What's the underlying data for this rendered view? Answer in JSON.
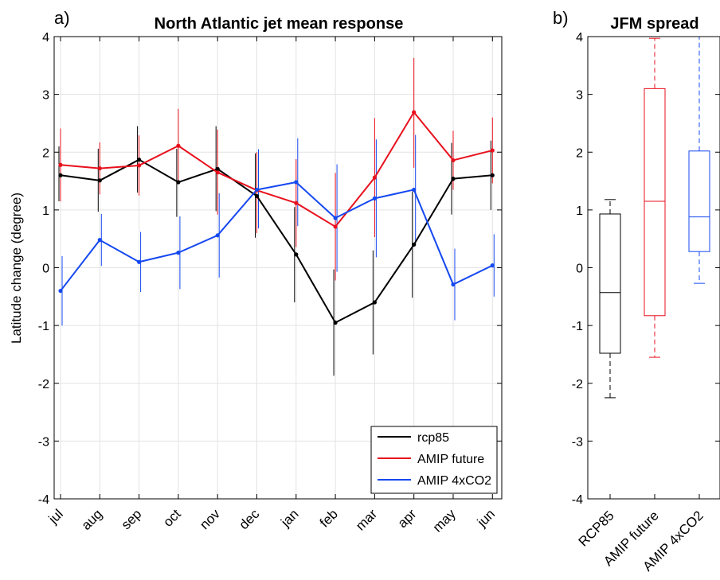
{
  "chart_data": [
    {
      "type": "line",
      "panel_label": "a)",
      "title": "North Atlantic jet mean response",
      "xlabel": "",
      "ylabel": "Latitude change (degree)",
      "ylim": [
        -4,
        4
      ],
      "yticks": [
        -4,
        -3,
        -2,
        -1,
        0,
        1,
        2,
        3,
        4
      ],
      "categories": [
        "jul",
        "aug",
        "sep",
        "oct",
        "nov",
        "dec",
        "jan",
        "feb",
        "mar",
        "apr",
        "may",
        "jun"
      ],
      "grid": true,
      "legend_position": "bottom-right",
      "series": [
        {
          "name": "rcp85",
          "color": "#000000",
          "values": [
            1.6,
            1.51,
            1.87,
            1.48,
            1.71,
            1.24,
            0.23,
            -0.95,
            -0.6,
            0.4,
            1.54,
            1.6
          ],
          "err_low": [
            1.15,
            0.97,
            1.3,
            0.88,
            0.98,
            0.52,
            -0.6,
            -1.87,
            -1.5,
            -0.52,
            0.92,
            1.0
          ],
          "err_high": [
            2.1,
            2.06,
            2.45,
            2.06,
            2.45,
            1.98,
            1.05,
            -0.03,
            0.3,
            1.32,
            2.16,
            2.2
          ]
        },
        {
          "name": "AMIP future",
          "color": "#e8101c",
          "values": [
            1.78,
            1.72,
            1.77,
            2.11,
            1.65,
            1.34,
            1.12,
            0.71,
            1.56,
            2.69,
            1.86,
            2.03
          ],
          "err_low": [
            1.15,
            1.27,
            1.25,
            1.48,
            0.92,
            0.6,
            0.36,
            -0.22,
            0.53,
            1.73,
            1.35,
            1.46
          ],
          "err_high": [
            2.41,
            2.17,
            2.29,
            2.75,
            2.39,
            2.0,
            1.88,
            1.64,
            2.59,
            3.63,
            2.37,
            2.6
          ]
        },
        {
          "name": "AMIP 4xCO2",
          "color": "#1548f0",
          "values": [
            -0.4,
            0.48,
            0.1,
            0.26,
            0.56,
            1.35,
            1.48,
            0.86,
            1.2,
            1.35,
            -0.29,
            0.04
          ],
          "err_low": [
            -1.0,
            0.03,
            -0.42,
            -0.37,
            -0.17,
            0.68,
            0.72,
            -0.07,
            0.18,
            0.4,
            -0.91,
            -0.5
          ],
          "err_high": [
            0.2,
            0.93,
            0.62,
            0.89,
            1.29,
            2.05,
            2.24,
            1.79,
            2.22,
            2.3,
            0.33,
            0.58
          ]
        }
      ]
    },
    {
      "type": "box",
      "panel_label": "b)",
      "title": "JFM spread",
      "xlabel": "",
      "ylabel": "",
      "ylim": [
        -4,
        4
      ],
      "yticks": [
        -4,
        -3,
        -2,
        -1,
        0,
        1,
        2,
        3,
        4
      ],
      "categories": [
        "RCP85",
        "AMIP future",
        "AMIP 4xCO2"
      ],
      "boxes": [
        {
          "name": "RCP85",
          "color": "#000000",
          "whisker_low": -2.25,
          "q1": -1.48,
          "median": -0.43,
          "q3": 0.93,
          "whisker_high": 1.18
        },
        {
          "name": "AMIP future",
          "color": "#e8101c",
          "whisker_low": -1.55,
          "q1": -0.83,
          "median": 1.15,
          "q3": 3.1,
          "whisker_high": 3.97
        },
        {
          "name": "AMIP 4xCO2",
          "color": "#1548f0",
          "whisker_low": -0.27,
          "q1": 0.28,
          "median": 0.88,
          "q3": 2.02,
          "whisker_high": 4.0
        }
      ]
    }
  ]
}
